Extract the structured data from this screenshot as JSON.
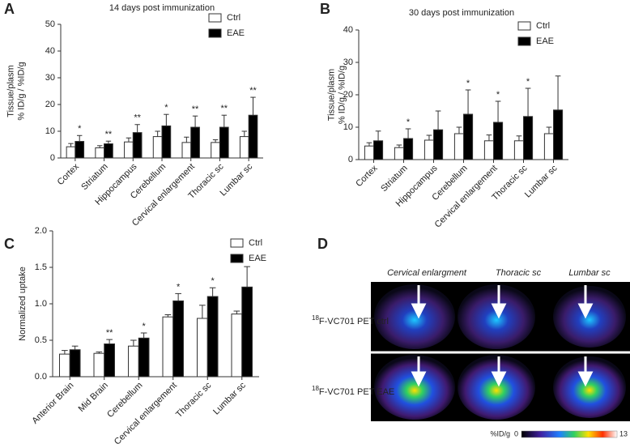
{
  "chart_data": [
    {
      "type": "bar",
      "panel": "A",
      "title": "14 days post immunization",
      "y_label": [
        "Tissue/plasm",
        "% ID/g / %ID/g"
      ],
      "categories": [
        "Cortex",
        "Striatum",
        "Hippocampus",
        "Cerebellum",
        "Cervical enlargement",
        "Thoracic sc",
        "Lumbar sc"
      ],
      "series": [
        {
          "name": "Ctrl",
          "color": "#ffffff",
          "values": [
            4.2,
            3.8,
            6,
            8,
            5.8,
            5.8,
            8
          ],
          "errors": [
            1.2,
            0.8,
            1.5,
            2,
            2,
            1,
            2
          ]
        },
        {
          "name": "EAE",
          "color": "#000000",
          "values": [
            6.2,
            5.3,
            9.5,
            12,
            11.5,
            11.5,
            16
          ],
          "errors": [
            2.2,
            1,
            3,
            4.3,
            4.2,
            4.5,
            6.7
          ]
        }
      ],
      "annotations": [
        "*",
        "**",
        "**",
        "*",
        "**",
        "**",
        "**"
      ],
      "ylim": [
        0,
        50
      ],
      "yticks": [
        0,
        10,
        20,
        30,
        40,
        50
      ],
      "legend": "upper right"
    },
    {
      "type": "bar",
      "panel": "B",
      "title": "30 days post immunization",
      "y_label": [
        "Tissue/plasm",
        "% ID/g / %ID/g"
      ],
      "categories": [
        "Cortex",
        "Striatum",
        "Hippocampus",
        "Cerebellum",
        "Cervical enlargement",
        "Thoracic sc",
        "Lumbar sc"
      ],
      "series": [
        {
          "name": "Ctrl",
          "color": "#ffffff",
          "values": [
            4.2,
            3.7,
            6,
            8,
            5.8,
            5.8,
            8
          ],
          "errors": [
            1,
            0.8,
            1.5,
            2,
            1.8,
            1.5,
            2
          ]
        },
        {
          "name": "EAE",
          "color": "#000000",
          "values": [
            5.8,
            6.5,
            9.2,
            14,
            11.5,
            13.3,
            15.3
          ],
          "errors": [
            3,
            3,
            5.8,
            7.5,
            6.5,
            8.7,
            10.5
          ]
        }
      ],
      "annotations": [
        null,
        "*",
        null,
        "*",
        "*",
        "*",
        null
      ],
      "ylim": [
        0,
        40
      ],
      "yticks": [
        0,
        10,
        20,
        30,
        40
      ],
      "legend": "upper right"
    },
    {
      "type": "bar",
      "panel": "C",
      "y_label": [
        "Normalized uptake"
      ],
      "categories": [
        "Anterior Brain",
        "Mid Brain",
        "Cerebellum",
        "Cervical enlargement",
        "Thoracic sc",
        "Lumbar sc"
      ],
      "series": [
        {
          "name": "Ctrl",
          "color": "#ffffff",
          "values": [
            0.31,
            0.32,
            0.42,
            0.82,
            0.8,
            0.86
          ],
          "errors": [
            0.05,
            0.02,
            0.08,
            0.03,
            0.18,
            0.04
          ]
        },
        {
          "name": "EAE",
          "color": "#000000",
          "values": [
            0.37,
            0.45,
            0.53,
            1.04,
            1.1,
            1.23
          ],
          "errors": [
            0.05,
            0.06,
            0.07,
            0.1,
            0.12,
            0.28
          ]
        }
      ],
      "annotations": [
        null,
        "**",
        "*",
        "*",
        "*",
        null
      ],
      "ylim": [
        0,
        2
      ],
      "yticks": [
        {
          "value": 0,
          "label": "0.0"
        },
        0.5,
        {
          "value": 1,
          "label": "1.0"
        },
        1.5,
        {
          "value": 2,
          "label": "2.0"
        }
      ],
      "legend": "upper right"
    }
  ],
  "panel_d": {
    "panel": "D",
    "columns": [
      "Cervical enlargment",
      "Thoracic sc",
      "Lumbar sc"
    ],
    "rows": [
      {
        "isotope": "18",
        "label": "F-VC701 PET ctrl"
      },
      {
        "isotope": "18",
        "label": "F-VC701 PET EAE"
      }
    ],
    "colorbar": {
      "unit": "%ID/g",
      "min": "0",
      "max": "13"
    }
  }
}
